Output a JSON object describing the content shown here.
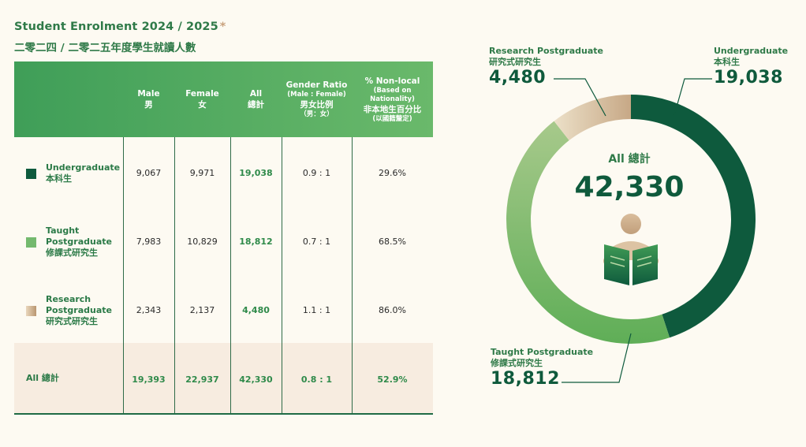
{
  "title": {
    "en": "Student Enrolment 2024 / 2025",
    "asterisk": "*",
    "zh": "二零二四 / 二零二五年度學生就讀人數"
  },
  "table": {
    "headers": {
      "male_en": "Male",
      "male_zh": "男",
      "female_en": "Female",
      "female_zh": "女",
      "all_en": "All",
      "all_zh": "總計",
      "ratio_en": "Gender Ratio",
      "ratio_sub": "(Male : Female)",
      "ratio_zh": "男女比例",
      "ratio_zh_sub": "（男：女）",
      "nonlocal_en": "% Non-local",
      "nonlocal_sub1": "(Based on",
      "nonlocal_sub2": "Nationality)",
      "nonlocal_zh": "非本地生百分比",
      "nonlocal_zh_sub": "(以國籍釐定)"
    },
    "rows": [
      {
        "label_en": "Undergraduate",
        "label_en2": "",
        "label_zh": "本科生",
        "color": "#0e5a3d",
        "male": "9,067",
        "female": "9,971",
        "all": "19,038",
        "ratio": "0.9 : 1",
        "nonlocal": "29.6%"
      },
      {
        "label_en": "Taught",
        "label_en2": "Postgraduate",
        "label_zh": "修課式研究生",
        "color": "#74b96e",
        "male": "7,983",
        "female": "10,829",
        "all": "18,812",
        "ratio": "0.7 : 1",
        "nonlocal": "68.5%"
      },
      {
        "label_en": "Research",
        "label_en2": "Postgraduate",
        "label_zh": "研究式研究生",
        "color": "#cfb290",
        "male": "2,343",
        "female": "2,137",
        "all": "4,480",
        "ratio": "1.1 : 1",
        "nonlocal": "86.0%"
      }
    ],
    "total": {
      "label": "All 總計",
      "male": "19,393",
      "female": "22,937",
      "all": "42,330",
      "ratio": "0.8 : 1",
      "nonlocal": "52.9%"
    }
  },
  "chart_data": {
    "type": "pie",
    "title": "All 總計",
    "total": "42,330",
    "categories": [
      "Undergraduate 本科生",
      "Taught Postgraduate 修課式研究生",
      "Research Postgraduate 研究式研究生"
    ],
    "values": [
      19038,
      18812,
      4480
    ],
    "colors": [
      "#0e5a3d",
      "#6fb46a",
      "#dcc6a8"
    ],
    "labels": {
      "ug_en": "Undergraduate",
      "ug_zh": "本科生",
      "ug_num": "19,038",
      "tp_en": "Taught Postgraduate",
      "tp_zh": "修課式研究生",
      "tp_num": "18,812",
      "rp_en": "Research Postgraduate",
      "rp_zh": "研究式研究生",
      "rp_num": "4,480"
    }
  }
}
